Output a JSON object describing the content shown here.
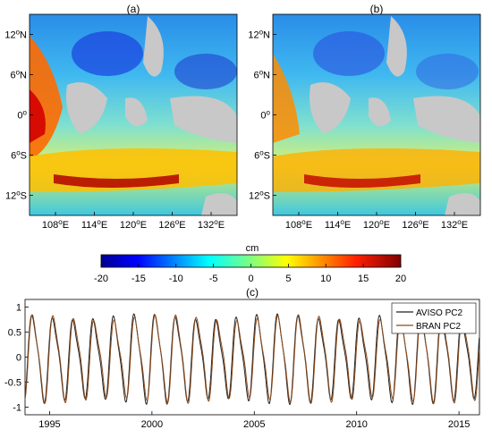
{
  "chart_data": [
    {
      "type": "heatmap",
      "panel_label": "(a)",
      "x_ticks": [
        "108",
        "114",
        "120",
        "126",
        "132"
      ],
      "x_tick_suffix": "E",
      "y_ticks": [
        "12",
        "6",
        "0",
        "6",
        "12"
      ],
      "y_tick_suffix": [
        "N",
        "N",
        "",
        "S",
        "S"
      ],
      "xlim": [
        104,
        136
      ],
      "ylim": [
        -15,
        15
      ],
      "colormap": "jet",
      "land_color": "#c8c8c8"
    },
    {
      "type": "heatmap",
      "panel_label": "(b)",
      "x_ticks": [
        "108",
        "114",
        "120",
        "126",
        "132"
      ],
      "x_tick_suffix": "E",
      "y_ticks": [
        "12",
        "6",
        "0",
        "6",
        "12"
      ],
      "y_tick_suffix": [
        "N",
        "N",
        "",
        "S",
        "S"
      ],
      "xlim": [
        104,
        136
      ],
      "ylim": [
        -15,
        15
      ],
      "colormap": "jet",
      "land_color": "#c8c8c8"
    },
    {
      "type": "colorbar",
      "unit": "cm",
      "ticks": [
        "-20",
        "-15",
        "-10",
        "-5",
        "0",
        "5",
        "10",
        "15",
        "20"
      ],
      "range": [
        -20,
        20
      ]
    },
    {
      "type": "line",
      "panel_label": "(c)",
      "x_ticks": [
        "1995",
        "2000",
        "2005",
        "2010",
        "2015"
      ],
      "y_ticks": [
        "1",
        "0.5",
        "0",
        "-0.5",
        "-1"
      ],
      "xlim": [
        1993.8,
        2016.0
      ],
      "ylim": [
        -1.15,
        1.15
      ],
      "legend_position": "top-right",
      "series": [
        {
          "name": "AVISO PC2",
          "color": "#222222",
          "start": 1993.8,
          "end": 2016.0,
          "period_years": 1.0,
          "amplitude": 0.78
        },
        {
          "name": "BRAN PC2",
          "color": "#8b4a1c",
          "start": 1993.8,
          "end": 2016.0,
          "period_years": 1.0,
          "amplitude": 0.76
        }
      ]
    }
  ]
}
